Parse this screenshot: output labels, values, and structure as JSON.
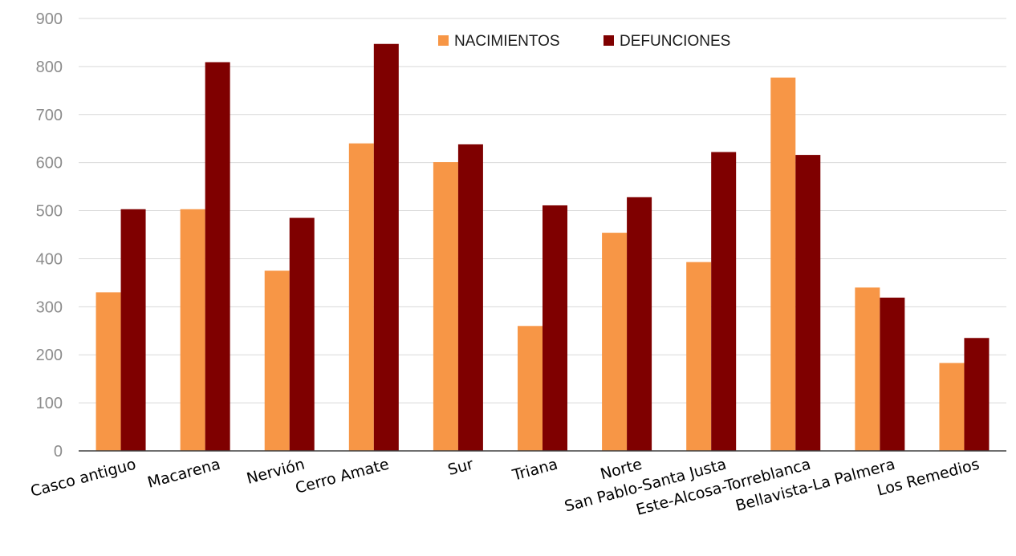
{
  "chart_data": {
    "type": "bar",
    "title": "",
    "xlabel": "",
    "ylabel": "",
    "ylim": [
      0,
      900
    ],
    "yticks": [
      0,
      100,
      200,
      300,
      400,
      500,
      600,
      700,
      800,
      900
    ],
    "grid": true,
    "legend_position": "top-center",
    "categories": [
      "Casco antiguo",
      "Macarena",
      "Nervión",
      "Cerro Amate",
      "Sur",
      "Triana",
      "Norte",
      "San Pablo-Santa Justa",
      "Este-Alcosa-Torreblanca",
      "Bellavista-La Palmera",
      "Los Remedios"
    ],
    "series": [
      {
        "name": "NACIMIENTOS",
        "color": "#f79646",
        "values": [
          330,
          503,
          375,
          640,
          601,
          260,
          454,
          393,
          777,
          340,
          183
        ]
      },
      {
        "name": "DEFUNCIONES",
        "color": "#7f0000",
        "values": [
          503,
          809,
          485,
          847,
          638,
          511,
          528,
          622,
          616,
          319,
          235
        ]
      }
    ]
  }
}
